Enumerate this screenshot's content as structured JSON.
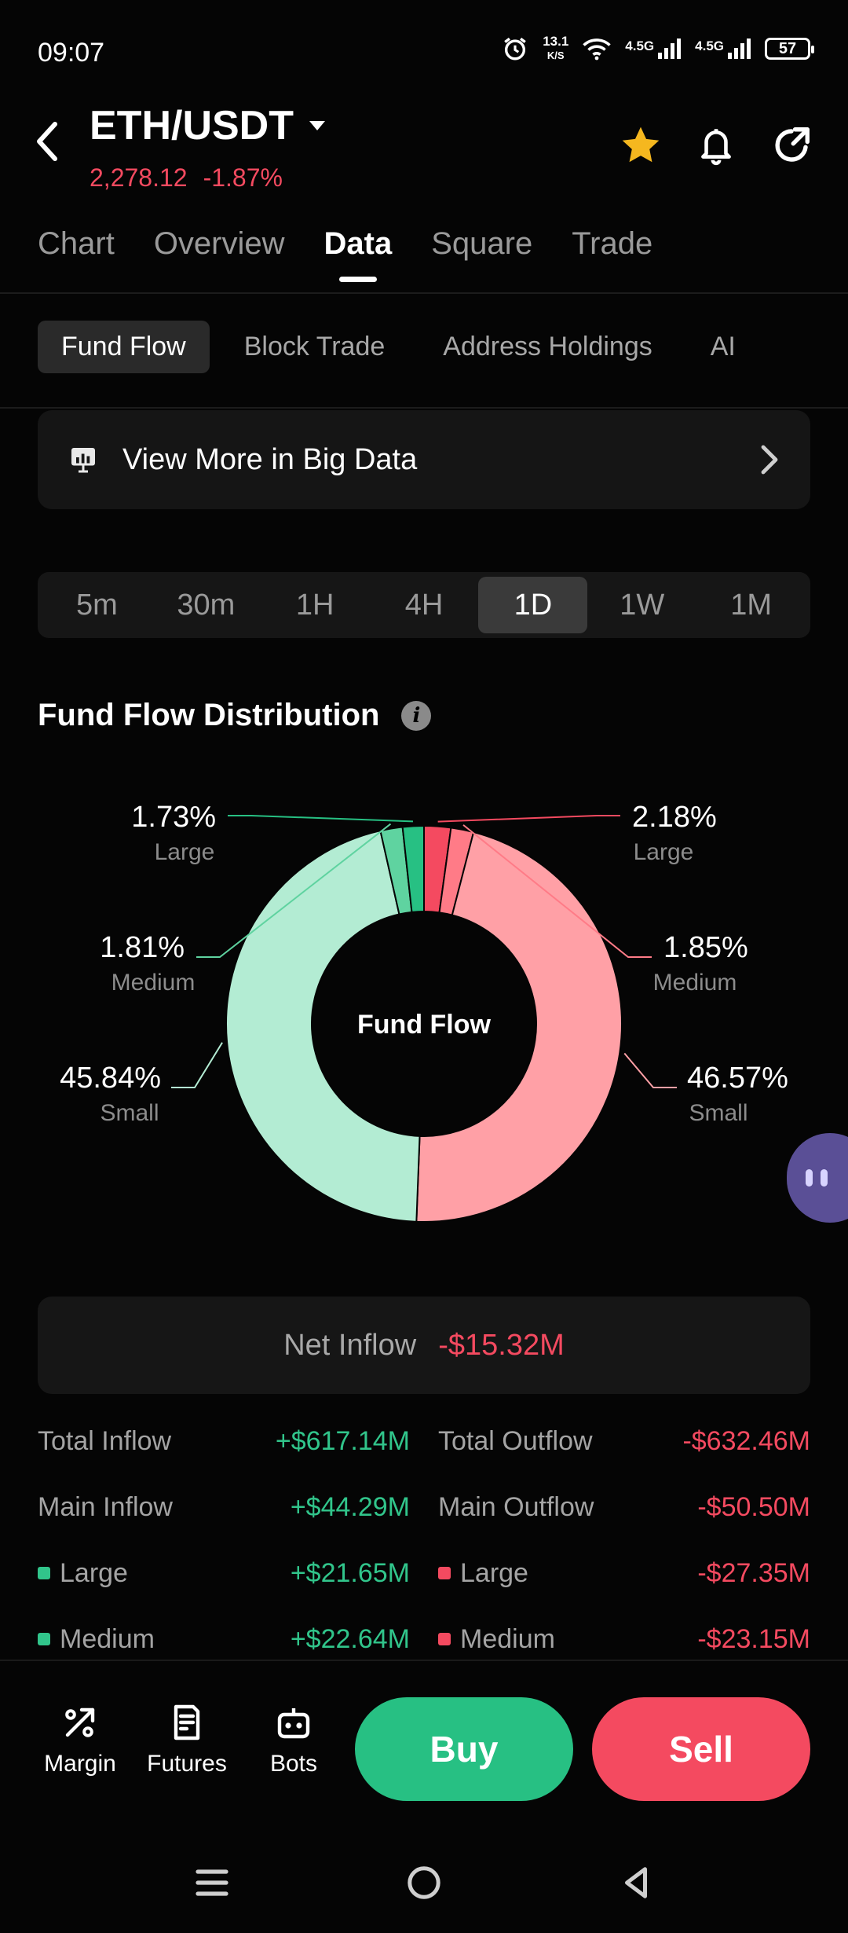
{
  "status_bar": {
    "time": "09:07",
    "net_speed_value": "13.1",
    "net_speed_unit": "K/S",
    "signal1_label": "4.5G",
    "signal2_label": "4.5G",
    "battery": "57",
    "icons": [
      "alarm-icon",
      "wifi-icon",
      "signal-icon",
      "signal-icon",
      "battery-icon"
    ]
  },
  "header": {
    "pair": "ETH/USDT",
    "price": "2,278.12",
    "change": "-1.87%",
    "icons": [
      "back-icon",
      "star-icon",
      "bell-icon",
      "share-icon"
    ]
  },
  "main_tabs": [
    {
      "label": "Chart",
      "active": false
    },
    {
      "label": "Overview",
      "active": false
    },
    {
      "label": "Data",
      "active": true
    },
    {
      "label": "Square",
      "active": false
    },
    {
      "label": "Trade",
      "active": false
    }
  ],
  "sub_tabs": [
    {
      "label": "Fund Flow",
      "active": true
    },
    {
      "label": "Block Trade",
      "active": false
    },
    {
      "label": "Address Holdings",
      "active": false
    },
    {
      "label": "AI",
      "active": false
    }
  ],
  "big_data_link": "View More in Big Data",
  "periods": [
    {
      "label": "5m",
      "active": false
    },
    {
      "label": "30m",
      "active": false
    },
    {
      "label": "1H",
      "active": false
    },
    {
      "label": "4H",
      "active": false
    },
    {
      "label": "1D",
      "active": true
    },
    {
      "label": "1W",
      "active": false
    },
    {
      "label": "1M",
      "active": false
    }
  ],
  "distribution_title": "Fund Flow Distribution",
  "colors": {
    "inflow_small": "#b3ecd3",
    "inflow_mid": "#5fd3a0",
    "inflow_large": "#27c083",
    "outflow_small": "#ffa0a6",
    "outflow_mid": "#ff7b87",
    "outflow_large": "#f44a60",
    "green": "#31c58b",
    "red": "#f44a60"
  },
  "chart_data": {
    "type": "pie",
    "title": "",
    "center_label": "Fund Flow",
    "slices": [
      {
        "label": "Large",
        "pct": "2.18%",
        "value": 2.18,
        "color": "#f44a60",
        "side": "right"
      },
      {
        "label": "Medium",
        "pct": "1.85%",
        "value": 1.85,
        "color": "#ff7b87",
        "side": "right"
      },
      {
        "label": "Small",
        "pct": "46.57%",
        "value": 46.57,
        "color": "#ffa0a6",
        "side": "right"
      },
      {
        "label": "Small",
        "pct": "45.84%",
        "value": 45.84,
        "color": "#b3ecd3",
        "side": "left"
      },
      {
        "label": "Medium",
        "pct": "1.81%",
        "value": 1.81,
        "color": "#5fd3a0",
        "side": "left"
      },
      {
        "label": "Large",
        "pct": "1.73%",
        "value": 1.73,
        "color": "#27c083",
        "side": "left"
      }
    ]
  },
  "net_inflow": {
    "label": "Net Inflow",
    "value": "-$15.32M"
  },
  "flow_rows": [
    {
      "in_label": "Total Inflow",
      "in_value": "+$617.14M",
      "out_label": "Total Outflow",
      "out_value": "-$632.46M",
      "dot": false
    },
    {
      "in_label": "Main Inflow",
      "in_value": "+$44.29M",
      "out_label": "Main Outflow",
      "out_value": "-$50.50M",
      "dot": false
    },
    {
      "in_label": "Large",
      "in_value": "+$21.65M",
      "out_label": "Large",
      "out_value": "-$27.35M",
      "dot": true
    },
    {
      "in_label": "Medium",
      "in_value": "+$22.64M",
      "out_label": "Medium",
      "out_value": "-$23.15M",
      "dot": true
    }
  ],
  "bottom_nav": [
    {
      "label": "Margin",
      "icon": "margin-icon"
    },
    {
      "label": "Futures",
      "icon": "futures-icon"
    },
    {
      "label": "Bots",
      "icon": "bots-icon"
    }
  ],
  "actions": {
    "buy": "Buy",
    "sell": "Sell"
  }
}
